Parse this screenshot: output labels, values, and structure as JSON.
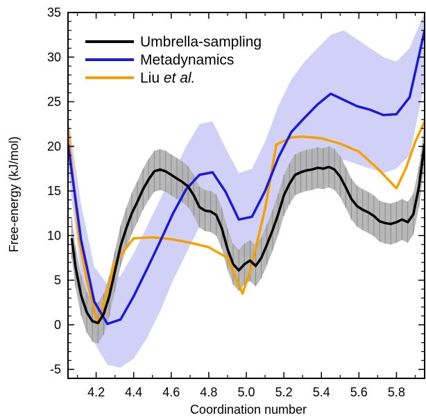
{
  "chart_data": {
    "type": "line",
    "xlabel": "Coordination number",
    "ylabel": "Free-energy (kJ/mol)",
    "xlim": [
      4.05,
      5.95
    ],
    "ylim": [
      -6,
      35
    ],
    "x_ticks": [
      "4.2",
      "4.4",
      "4.6",
      "4.8",
      "5.0",
      "5.2",
      "5.4",
      "5.6",
      "5.8"
    ],
    "y_ticks": [
      "-5",
      "0",
      "5",
      "10",
      "15",
      "20",
      "25",
      "30",
      "35"
    ],
    "legend_position": "top-left",
    "series": [
      {
        "name": "Umbrella-sampling",
        "legend_label": "Umbrella-sampling",
        "color": "#000000",
        "band_color": "#b0b0b0",
        "x": [
          4.07,
          4.09,
          4.12,
          4.15,
          4.18,
          4.21,
          4.24,
          4.27,
          4.3,
          4.33,
          4.36,
          4.39,
          4.42,
          4.45,
          4.48,
          4.51,
          4.54,
          4.57,
          4.6,
          4.63,
          4.66,
          4.69,
          4.72,
          4.75,
          4.78,
          4.81,
          4.84,
          4.87,
          4.9,
          4.93,
          4.96,
          4.99,
          5.02,
          5.05,
          5.08,
          5.11,
          5.14,
          5.17,
          5.2,
          5.23,
          5.26,
          5.29,
          5.32,
          5.35,
          5.38,
          5.41,
          5.44,
          5.47,
          5.5,
          5.53,
          5.56,
          5.59,
          5.62,
          5.65,
          5.68,
          5.71,
          5.74,
          5.77,
          5.8,
          5.83,
          5.86,
          5.89,
          5.92,
          5.95
        ],
        "y": [
          9.7,
          6.5,
          3.3,
          1.4,
          0.4,
          0.2,
          1.2,
          3.2,
          6.0,
          8.8,
          10.8,
          12.5,
          13.8,
          15.2,
          16.3,
          17.2,
          17.4,
          17.2,
          16.8,
          16.4,
          16.0,
          15.5,
          14.5,
          13.2,
          12.8,
          12.7,
          12.3,
          10.8,
          8.5,
          6.8,
          6.1,
          6.8,
          7.2,
          6.6,
          7.5,
          9.0,
          10.6,
          12.4,
          14.5,
          15.8,
          16.8,
          17.1,
          17.3,
          17.4,
          17.6,
          17.5,
          17.7,
          17.4,
          16.6,
          15.4,
          14.1,
          13.3,
          12.9,
          12.6,
          12.2,
          11.6,
          11.4,
          11.3,
          11.5,
          11.8,
          11.5,
          12.4,
          15.5,
          20.3
        ],
        "error": 2.3
      },
      {
        "name": "Metadynamics",
        "legend_label": "Metadynamics",
        "color": "#1a1adc",
        "band_color": "#c9c9f7",
        "x": [
          4.05,
          4.12,
          4.19,
          4.26,
          4.33,
          4.4,
          4.47,
          4.54,
          4.61,
          4.68,
          4.75,
          4.82,
          4.89,
          4.96,
          5.03,
          5.1,
          5.17,
          5.24,
          5.31,
          5.38,
          5.45,
          5.52,
          5.59,
          5.66,
          5.73,
          5.8,
          5.87,
          5.95
        ],
        "y": [
          20.2,
          9.5,
          2.6,
          0.1,
          0.6,
          3.2,
          6.2,
          9.3,
          12.5,
          15.2,
          16.8,
          17.1,
          14.9,
          11.8,
          12.1,
          15.0,
          18.7,
          21.6,
          23.2,
          24.7,
          25.9,
          25.2,
          24.5,
          24.1,
          23.5,
          23.6,
          25.5,
          33.0
        ],
        "band_lower": [
          17.5,
          5.5,
          -2.0,
          -4.5,
          -4.8,
          -3.8,
          -1.5,
          1.5,
          5.0,
          8.0,
          11.0,
          12.5,
          11.0,
          7.8,
          7.5,
          10.0,
          13.5,
          16.0,
          17.0,
          17.5,
          18.0,
          18.5,
          18.0,
          17.5,
          17.0,
          17.5,
          19.0,
          27.0
        ],
        "band_upper": [
          23.5,
          13.5,
          6.5,
          4.5,
          5.5,
          8.0,
          11.0,
          14.0,
          17.0,
          20.0,
          22.5,
          22.8,
          19.8,
          17.0,
          17.5,
          20.5,
          24.5,
          27.5,
          29.5,
          31.0,
          32.5,
          33.0,
          32.0,
          31.0,
          30.0,
          29.5,
          31.0,
          35.0
        ]
      },
      {
        "name": "Liu et al.",
        "legend_label": "Liu ",
        "legend_label_italic": "et al.",
        "color": "#f5a100",
        "x": [
          4.05,
          4.11,
          4.15,
          4.21,
          4.3,
          4.4,
          4.5,
          4.6,
          4.7,
          4.8,
          4.9,
          4.98,
          5.02,
          5.1,
          5.16,
          5.24,
          5.3,
          5.4,
          5.5,
          5.6,
          5.7,
          5.8,
          5.85,
          5.9,
          5.95
        ],
        "y": [
          22.0,
          9.5,
          5.0,
          0.0,
          7.0,
          9.7,
          9.8,
          9.6,
          9.2,
          8.7,
          7.5,
          3.5,
          6.0,
          13.0,
          20.2,
          21.0,
          21.1,
          20.9,
          20.3,
          19.4,
          17.5,
          15.3,
          17.5,
          20.5,
          22.8
        ]
      }
    ]
  }
}
